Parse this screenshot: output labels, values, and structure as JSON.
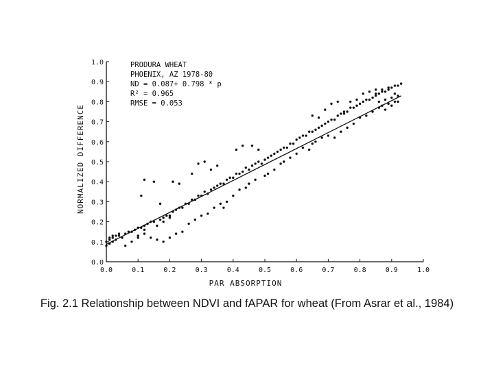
{
  "caption": "Fig. 2.1 Relationship between NDVI and fAPAR for wheat (From Asrar et al., 1984)",
  "chart_data": {
    "type": "scatter",
    "xlabel": "PAR ABSORPTION",
    "ylabel": "NORMALIZED DIFFERENCE",
    "xlim": [
      0,
      1
    ],
    "ylim": [
      0,
      1
    ],
    "xticks": [
      "0.0",
      "0.1",
      "0.2",
      "0.3",
      "0.4",
      "0.5",
      "0.6",
      "0.7",
      "0.8",
      "0.9",
      "1.0"
    ],
    "yticks": [
      "0.0",
      "0.1",
      "0.2",
      "0.3",
      "0.4",
      "0.5",
      "0.6",
      "0.7",
      "0.8",
      "0.9",
      "1.0"
    ],
    "grid": false,
    "annotations": [
      "PRODURA WHEAT",
      "PHOENIX, AZ 1978-80",
      "ND = 0.087+ 0.798 * p",
      "R² = 0.965",
      "RMSE = 0.053"
    ],
    "fit_line": {
      "intercept": 0.087,
      "slope": 0.798,
      "x_range": [
        0.0,
        0.93
      ]
    },
    "series": [
      {
        "x": [
          0.0,
          0.01,
          0.02,
          0.03,
          0.04,
          0.0,
          0.01,
          0.02,
          0.03,
          0.05,
          0.01,
          0.02,
          0.04,
          0.06,
          0.07,
          0.08,
          0.09,
          0.1,
          0.11,
          0.12,
          0.13,
          0.14,
          0.1,
          0.12,
          0.15,
          0.17,
          0.18,
          0.19,
          0.2,
          0.21,
          0.22,
          0.23,
          0.16,
          0.18,
          0.2,
          0.24,
          0.25,
          0.26,
          0.27,
          0.28,
          0.29,
          0.3,
          0.31,
          0.32,
          0.33,
          0.34,
          0.35,
          0.36,
          0.37,
          0.38,
          0.39,
          0.4,
          0.41,
          0.42,
          0.43,
          0.44,
          0.45,
          0.46,
          0.47,
          0.48,
          0.49,
          0.5,
          0.51,
          0.52,
          0.53,
          0.54,
          0.55,
          0.56,
          0.57,
          0.58,
          0.59,
          0.6,
          0.61,
          0.62,
          0.63,
          0.64,
          0.65,
          0.66,
          0.67,
          0.68,
          0.69,
          0.7,
          0.71,
          0.72,
          0.73,
          0.74,
          0.75,
          0.76,
          0.77,
          0.78,
          0.79,
          0.8,
          0.81,
          0.82,
          0.83,
          0.84,
          0.85,
          0.86,
          0.87,
          0.88,
          0.89,
          0.9,
          0.91,
          0.92,
          0.93,
          0.86,
          0.88,
          0.9,
          0.92,
          0.87,
          0.89,
          0.91,
          0.85,
          0.84,
          0.86,
          0.88,
          0.9,
          0.92,
          0.8,
          0.82,
          0.78,
          0.76,
          0.74,
          0.72,
          0.7,
          0.68,
          0.66,
          0.65,
          0.64,
          0.62,
          0.6,
          0.58,
          0.56,
          0.55,
          0.53,
          0.5,
          0.47,
          0.45,
          0.44,
          0.42,
          0.4,
          0.38,
          0.36,
          0.34,
          0.32,
          0.3,
          0.28,
          0.26,
          0.24,
          0.22,
          0.2,
          0.18,
          0.16,
          0.14,
          0.12,
          0.1,
          0.08,
          0.06,
          0.11,
          0.12,
          0.15,
          0.17,
          0.21,
          0.23,
          0.27,
          0.29,
          0.31,
          0.33,
          0.35,
          0.37,
          0.41,
          0.43,
          0.46,
          0.48,
          0.51,
          0.65,
          0.67,
          0.69,
          0.71,
          0.73,
          0.75,
          0.77,
          0.79,
          0.81,
          0.83,
          0.85,
          0.87,
          0.89,
          0.91
        ],
        "y": [
          0.1,
          0.11,
          0.12,
          0.13,
          0.14,
          0.08,
          0.09,
          0.1,
          0.11,
          0.12,
          0.12,
          0.13,
          0.13,
          0.14,
          0.15,
          0.15,
          0.16,
          0.17,
          0.17,
          0.18,
          0.19,
          0.2,
          0.13,
          0.16,
          0.2,
          0.21,
          0.22,
          0.23,
          0.23,
          0.25,
          0.26,
          0.27,
          0.18,
          0.2,
          0.22,
          0.27,
          0.29,
          0.29,
          0.31,
          0.31,
          0.33,
          0.33,
          0.35,
          0.34,
          0.36,
          0.37,
          0.38,
          0.39,
          0.39,
          0.41,
          0.42,
          0.42,
          0.44,
          0.44,
          0.45,
          0.47,
          0.46,
          0.48,
          0.49,
          0.5,
          0.49,
          0.51,
          0.52,
          0.53,
          0.54,
          0.55,
          0.56,
          0.57,
          0.57,
          0.59,
          0.59,
          0.61,
          0.62,
          0.63,
          0.63,
          0.65,
          0.65,
          0.66,
          0.67,
          0.68,
          0.69,
          0.7,
          0.71,
          0.71,
          0.73,
          0.74,
          0.74,
          0.75,
          0.77,
          0.77,
          0.78,
          0.79,
          0.8,
          0.81,
          0.81,
          0.82,
          0.83,
          0.84,
          0.85,
          0.85,
          0.86,
          0.87,
          0.88,
          0.88,
          0.89,
          0.8,
          0.81,
          0.82,
          0.83,
          0.78,
          0.79,
          0.8,
          0.86,
          0.75,
          0.77,
          0.76,
          0.78,
          0.8,
          0.72,
          0.73,
          0.69,
          0.67,
          0.65,
          0.62,
          0.63,
          0.62,
          0.6,
          0.59,
          0.56,
          0.57,
          0.54,
          0.52,
          0.5,
          0.49,
          0.46,
          0.43,
          0.41,
          0.39,
          0.37,
          0.36,
          0.33,
          0.3,
          0.29,
          0.27,
          0.24,
          0.23,
          0.21,
          0.19,
          0.15,
          0.14,
          0.12,
          0.1,
          0.11,
          0.12,
          0.14,
          0.12,
          0.1,
          0.08,
          0.33,
          0.41,
          0.4,
          0.29,
          0.4,
          0.39,
          0.44,
          0.49,
          0.5,
          0.46,
          0.48,
          0.27,
          0.56,
          0.58,
          0.58,
          0.56,
          0.44,
          0.73,
          0.72,
          0.76,
          0.79,
          0.8,
          0.75,
          0.8,
          0.81,
          0.84,
          0.85,
          0.84,
          0.86,
          0.87,
          0.84
        ]
      }
    ]
  }
}
